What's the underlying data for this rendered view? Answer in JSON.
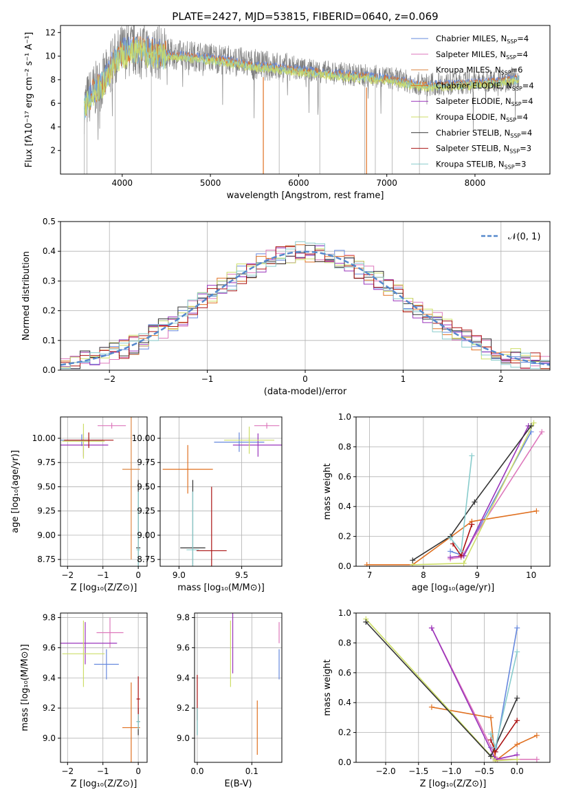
{
  "figure": {
    "title": "PLATE=2427, MJD=53815, FIBERID=0640, z=0.069"
  },
  "legend_series": [
    {
      "label": "Chabrier MILES, N",
      "sub": "SSP",
      "tail": "=4",
      "color": "#6688dd"
    },
    {
      "label": "Salpeter MILES, N",
      "sub": "SSP",
      "tail": "=4",
      "color": "#dd77bb"
    },
    {
      "label": "Kroupa MILES, N",
      "sub": "SSP",
      "tail": "=6",
      "color": "#dd8844"
    },
    {
      "label": "Chabrier ELODIE, N",
      "sub": "SSP",
      "tail": "=4",
      "color": "#e07020"
    },
    {
      "label": "Salpeter ELODIE, N",
      "sub": "SSP",
      "tail": "=4",
      "color": "#9933bb"
    },
    {
      "label": "Kroupa ELODIE, N",
      "sub": "SSP",
      "tail": "=4",
      "color": "#ccdd66"
    },
    {
      "label": "Chabrier STELIB, N",
      "sub": "SSP",
      "tail": "=4",
      "color": "#333333"
    },
    {
      "label": "Salpeter STELIB, N",
      "sub": "SSP",
      "tail": "=3",
      "color": "#aa1111"
    },
    {
      "label": "Kroupa STELIB, N",
      "sub": "SSP",
      "tail": "=3",
      "color": "#88cccc"
    }
  ],
  "chart_data": [
    {
      "id": "spectrum",
      "type": "line",
      "xlabel": "wavelength [Angstrom, rest frame]",
      "ylabel": "Flux [fλ10⁻¹⁷ erg cm⁻² s⁻¹ A⁻¹]",
      "xlim": [
        3300,
        8850
      ],
      "ylim": [
        0,
        12.6
      ],
      "xticks": [
        4000,
        5000,
        6000,
        7000,
        8000
      ],
      "yticks": [
        2,
        4,
        6,
        8,
        10,
        12
      ],
      "data_color": "#808080",
      "continuum": [
        [
          3570,
          5.8
        ],
        [
          3650,
          6.8
        ],
        [
          3800,
          8.0
        ],
        [
          3900,
          9.5
        ],
        [
          4000,
          10.4
        ],
        [
          4200,
          10.6
        ],
        [
          4500,
          10.2
        ],
        [
          5000,
          9.9
        ],
        [
          5500,
          9.3
        ],
        [
          6000,
          8.9
        ],
        [
          6500,
          8.5
        ],
        [
          7000,
          8.2
        ],
        [
          7400,
          7.6
        ],
        [
          7800,
          7.7
        ],
        [
          8200,
          7.9
        ],
        [
          8500,
          8.2
        ]
      ],
      "spikes": [
        3570,
        3600,
        3920,
        4330,
        5600,
        5780,
        6240,
        6750,
        6870,
        7060,
        7370
      ]
    },
    {
      "id": "residuals",
      "type": "line",
      "xlabel": "(data-model)/error",
      "ylabel": "Normed distribution",
      "xlim": [
        -2.5,
        2.5
      ],
      "ylim": [
        0,
        0.5
      ],
      "xticks": [
        -2,
        -1,
        0,
        1,
        2
      ],
      "yticks": [
        0.0,
        0.1,
        0.2,
        0.3,
        0.4,
        0.5
      ],
      "legend": "𝒩(0, 1)",
      "gauss_color": "#5588cc"
    },
    {
      "id": "age_vs_Z",
      "type": "scatter",
      "xlabel": "Z [log₁₀(Z/Z⊙)]",
      "ylabel": "age  [log₁₀(age/yr)]",
      "xlim": [
        -2.2,
        0.25
      ],
      "ylim": [
        8.68,
        10.22
      ],
      "xticks": [
        -2,
        -1,
        0
      ],
      "yticks": [
        8.75,
        9.0,
        9.25,
        9.5,
        9.75,
        10.0
      ],
      "points": [
        {
          "x": -1.6,
          "xerr": 0.6,
          "y": 9.98,
          "yerr": 0.06,
          "series": 0
        },
        {
          "x": -0.75,
          "xerr": 0.4,
          "y": 10.13,
          "yerr": 0.03,
          "series": 1
        },
        {
          "x": -0.2,
          "xerr": 0.25,
          "y": 9.68,
          "yerr": 0.93,
          "series": 2
        },
        {
          "x": -1.55,
          "xerr": 0.7,
          "y": 9.93,
          "yerr": 0.12,
          "series": 4
        },
        {
          "x": -1.55,
          "xerr": 0.6,
          "y": 9.97,
          "yerr": 0.18,
          "series": 5
        },
        {
          "x": 0.0,
          "xerr": 0.06,
          "y": 8.87,
          "yerr": 0.7,
          "series": 6
        },
        {
          "x": -1.4,
          "xerr": 0.7,
          "y": 9.98,
          "yerr": 0.08,
          "series": 7
        },
        {
          "x": 0.0,
          "xerr": 0.05,
          "y": 8.85,
          "yerr": 0.6,
          "series": 8
        }
      ]
    },
    {
      "id": "age_vs_mass",
      "type": "scatter",
      "xlabel": "mass [log₁₀(M/M⊙)]",
      "ylabel": "",
      "xlim": [
        8.85,
        9.82
      ],
      "ylim": [
        8.68,
        10.22
      ],
      "xticks": [
        9.0,
        9.5
      ],
      "yticks": [
        8.75,
        9.0,
        9.25,
        9.5,
        9.75,
        10.0
      ],
      "points": [
        {
          "x": 9.48,
          "xerr": 0.2,
          "y": 9.96,
          "yerr": 0.1,
          "series": 0
        },
        {
          "x": 9.7,
          "xerr": 0.1,
          "y": 10.13,
          "yerr": 0.03,
          "series": 1
        },
        {
          "x": 9.07,
          "xerr": 0.2,
          "y": 9.68,
          "yerr": 0.25,
          "series": 3
        },
        {
          "x": 9.63,
          "xerr": 0.2,
          "y": 9.93,
          "yerr": 0.12,
          "series": 4
        },
        {
          "x": 9.56,
          "xerr": 0.2,
          "y": 9.98,
          "yerr": 0.14,
          "series": 5
        },
        {
          "x": 9.11,
          "xerr": 0.1,
          "y": 8.87,
          "yerr": 0.7,
          "series": 6
        },
        {
          "x": 9.26,
          "xerr": 0.12,
          "y": 8.84,
          "yerr": 0.66,
          "series": 7
        },
        {
          "x": 9.11,
          "xerr": 0.05,
          "y": 8.85,
          "yerr": 0.6,
          "series": 8
        }
      ]
    },
    {
      "id": "weight_vs_age",
      "type": "line",
      "xlabel": "age  [log₁₀(age/yr)]",
      "ylabel": "mass weight",
      "xlim": [
        6.75,
        10.35
      ],
      "ylim": [
        0,
        1.0
      ],
      "xticks": [
        7,
        8,
        9,
        10
      ],
      "yticks": [
        0.0,
        0.2,
        0.4,
        0.6,
        0.8,
        1.0
      ],
      "series": [
        {
          "series": 0,
          "x": [
            8.5,
            8.75,
            10.0
          ],
          "y": [
            0.1,
            0.07,
            0.9
          ]
        },
        {
          "series": 1,
          "x": [
            8.5,
            8.7,
            10.2
          ],
          "y": [
            0.05,
            0.06,
            0.9
          ]
        },
        {
          "series": 3,
          "x": [
            6.95,
            7.8,
            8.9,
            10.1
          ],
          "y": [
            0.01,
            0.01,
            0.3,
            0.37
          ]
        },
        {
          "series": 4,
          "x": [
            8.5,
            8.75,
            9.95
          ],
          "y": [
            0.06,
            0.07,
            0.94
          ]
        },
        {
          "series": 5,
          "x": [
            7.8,
            8.75,
            10.05
          ],
          "y": [
            0.01,
            0.02,
            0.96
          ]
        },
        {
          "series": 6,
          "x": [
            7.8,
            8.5,
            8.95,
            10.0
          ],
          "y": [
            0.04,
            0.2,
            0.43,
            0.94
          ]
        },
        {
          "series": 7,
          "x": [
            8.55,
            8.7,
            8.9
          ],
          "y": [
            0.15,
            0.07,
            0.28
          ]
        },
        {
          "series": 8,
          "x": [
            8.5,
            8.7,
            8.9
          ],
          "y": [
            0.19,
            0.1,
            0.74
          ]
        }
      ]
    },
    {
      "id": "mass_vs_Z",
      "type": "scatter",
      "xlabel": "Z [log₁₀(Z/Z⊙)]",
      "ylabel": "mass [log₁₀(M/M⊙)]",
      "xlim": [
        -2.2,
        0.25
      ],
      "ylim": [
        8.84,
        9.83
      ],
      "xticks": [
        -2,
        -1,
        0
      ],
      "yticks": [
        9.0,
        9.2,
        9.4,
        9.6,
        9.8
      ],
      "points": [
        {
          "x": -0.9,
          "xerr": 0.35,
          "y": 9.49,
          "yerr": 0.1,
          "series": 0
        },
        {
          "x": -0.8,
          "xerr": 0.38,
          "y": 9.7,
          "yerr": 0.1,
          "series": 1
        },
        {
          "x": -0.2,
          "xerr": 0.25,
          "y": 9.07,
          "yerr": 0.3,
          "series": 3
        },
        {
          "x": -1.5,
          "xerr": 0.9,
          "y": 9.63,
          "yerr": 0.14,
          "series": 4
        },
        {
          "x": -1.55,
          "xerr": 0.6,
          "y": 9.56,
          "yerr": 0.22,
          "series": 5
        },
        {
          "x": 0.0,
          "xerr": 0.05,
          "y": 9.11,
          "yerr": 0.09,
          "series": 6
        },
        {
          "x": 0.0,
          "xerr": 0.05,
          "y": 9.26,
          "yerr": 0.15,
          "series": 7
        },
        {
          "x": 0.0,
          "xerr": 0.05,
          "y": 9.11,
          "yerr": 0.05,
          "series": 8
        }
      ]
    },
    {
      "id": "mass_vs_EBV",
      "type": "scatter",
      "xlabel": "E(B-V)",
      "ylabel": "",
      "xlim": [
        -0.005,
        0.155
      ],
      "ylim": [
        8.84,
        9.83
      ],
      "xticks": [
        0.0,
        0.1
      ],
      "yticks": [
        9.0,
        9.2,
        9.4,
        9.6,
        9.8
      ],
      "points": [
        {
          "x": 0.15,
          "y": 9.49,
          "yerr": 0.1,
          "series": 0
        },
        {
          "x": 0.15,
          "y": 9.7,
          "yerr": 0.07,
          "series": 1
        },
        {
          "x": 0.11,
          "y": 9.07,
          "yerr": 0.18,
          "series": 3
        },
        {
          "x": 0.065,
          "y": 9.63,
          "yerr": 0.2,
          "series": 4
        },
        {
          "x": 0.061,
          "y": 9.56,
          "yerr": 0.22,
          "series": 5
        },
        {
          "x": 0.0,
          "y": 9.11,
          "yerr": 0.09,
          "series": 6
        },
        {
          "x": 0.0,
          "y": 9.27,
          "yerr": 0.15,
          "series": 7
        },
        {
          "x": 0.0,
          "y": 9.11,
          "yerr": 0.09,
          "series": 8
        }
      ]
    },
    {
      "id": "weight_vs_Z",
      "type": "line",
      "xlabel": "Z [log₁₀(Z/Z⊙)]",
      "ylabel": "mass weight",
      "xlim": [
        -2.45,
        0.5
      ],
      "ylim": [
        0,
        1.0
      ],
      "xticks": [
        -2.0,
        -1.5,
        -1.0,
        -0.5,
        0.0
      ],
      "yticks": [
        0.0,
        0.2,
        0.4,
        0.6,
        0.8,
        1.0
      ],
      "series": [
        {
          "series": 0,
          "x": [
            -0.4,
            -0.33,
            0.0
          ],
          "y": [
            0.1,
            0.07,
            0.9
          ]
        },
        {
          "series": 1,
          "x": [
            -1.3,
            -0.3,
            0.3
          ],
          "y": [
            0.9,
            0.02,
            0.02
          ]
        },
        {
          "series": 3,
          "x": [
            -1.3,
            -0.4,
            -0.33,
            0.0,
            0.3
          ],
          "y": [
            0.37,
            0.3,
            0.01,
            0.12,
            0.18
          ]
        },
        {
          "series": 4,
          "x": [
            -1.3,
            -0.33,
            0.0
          ],
          "y": [
            0.9,
            0.02,
            0.05
          ]
        },
        {
          "series": 5,
          "x": [
            -2.3,
            -0.33,
            0.0
          ],
          "y": [
            0.96,
            0.01,
            0.02
          ]
        },
        {
          "series": 6,
          "x": [
            -2.3,
            -0.4,
            0.0
          ],
          "y": [
            0.94,
            0.04,
            0.43
          ]
        },
        {
          "series": 7,
          "x": [
            -0.4,
            -0.33,
            0.0
          ],
          "y": [
            0.15,
            0.07,
            0.28
          ]
        },
        {
          "series": 8,
          "x": [
            -0.4,
            -0.33,
            0.0
          ],
          "y": [
            0.19,
            0.1,
            0.74
          ]
        }
      ]
    }
  ]
}
